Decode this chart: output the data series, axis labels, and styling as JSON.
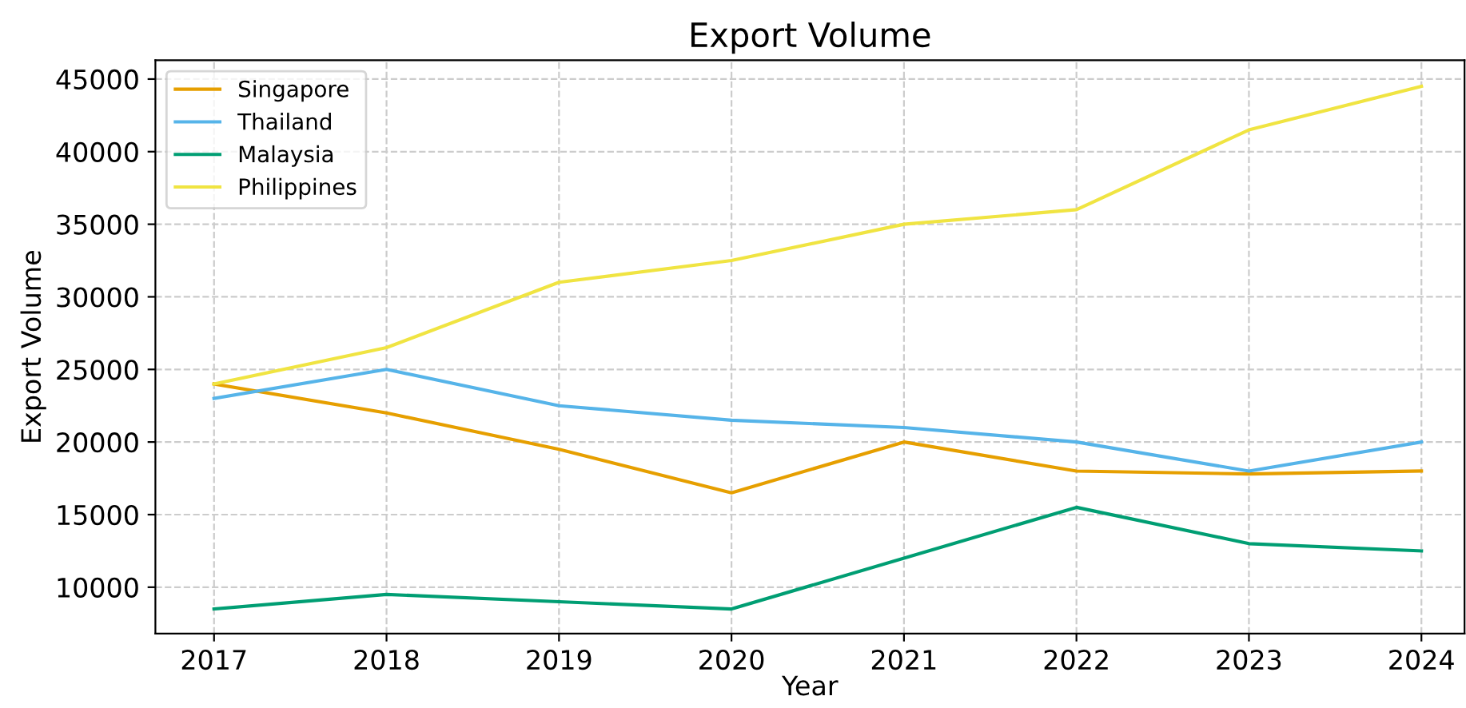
{
  "chart_data": {
    "type": "line",
    "title": "Export Volume",
    "xlabel": "Year",
    "ylabel": "Export Volume",
    "x": [
      2017,
      2018,
      2019,
      2020,
      2021,
      2022,
      2023,
      2024
    ],
    "series": [
      {
        "name": "Singapore",
        "color": "#e69f00",
        "values": [
          24000,
          22000,
          19500,
          16500,
          20000,
          18000,
          17800,
          18000
        ]
      },
      {
        "name": "Thailand",
        "color": "#56b4e9",
        "values": [
          23000,
          25000,
          22500,
          21500,
          21000,
          20000,
          18000,
          20000
        ]
      },
      {
        "name": "Malaysia",
        "color": "#009e73",
        "values": [
          8500,
          9500,
          9000,
          8500,
          12000,
          15500,
          13000,
          12500
        ]
      },
      {
        "name": "Philippines",
        "color": "#f0e442",
        "values": [
          24000,
          26500,
          31000,
          32500,
          35000,
          36000,
          41500,
          44500
        ]
      }
    ],
    "xlim": [
      2016.66,
      2024.25
    ],
    "xticks": [
      2017,
      2018,
      2019,
      2020,
      2021,
      2022,
      2023,
      2024
    ],
    "ylim": [
      6800,
      46300
    ],
    "yticks": [
      10000,
      15000,
      20000,
      25000,
      30000,
      35000,
      40000,
      45000
    ],
    "grid": true,
    "legend": "top left",
    "marker": "none",
    "line_style": "solid"
  }
}
